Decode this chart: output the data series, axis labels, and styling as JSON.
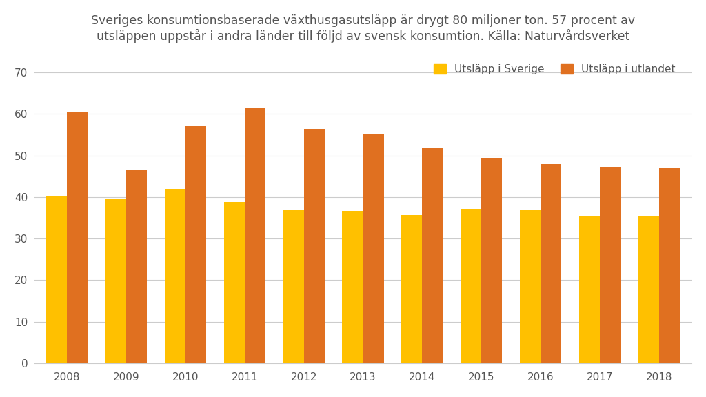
{
  "title": "Sveriges konsumtionsbaserade växthusgasutsläpp är drygt 80 miljoner ton. 57 procent av\nutsläppen uppstår i andra länder till följd av svensk konsumtion. Källa: Naturvårdsverket",
  "years": [
    2008,
    2009,
    2010,
    2011,
    2012,
    2013,
    2014,
    2015,
    2016,
    2017,
    2018
  ],
  "sverige": [
    40.2,
    39.7,
    42.0,
    38.8,
    37.0,
    36.7,
    35.7,
    37.2,
    37.0,
    35.5,
    35.5
  ],
  "utlandet": [
    60.4,
    46.6,
    57.0,
    61.5,
    56.4,
    55.3,
    51.8,
    49.4,
    48.0,
    47.2,
    46.9
  ],
  "color_sverige": "#FFC000",
  "color_utlandet": "#E07020",
  "legend_sverige": "Utsläpp i Sverige",
  "legend_utlandet": "Utsläpp i utlandet",
  "ylim": [
    0,
    75
  ],
  "yticks": [
    0,
    10,
    20,
    30,
    40,
    50,
    60,
    70
  ],
  "background_color": "#FFFFFF",
  "title_fontsize": 12.5,
  "tick_fontsize": 11,
  "legend_fontsize": 11,
  "bar_width": 0.35,
  "grid_color": "#CCCCCC",
  "text_color": "#555555"
}
